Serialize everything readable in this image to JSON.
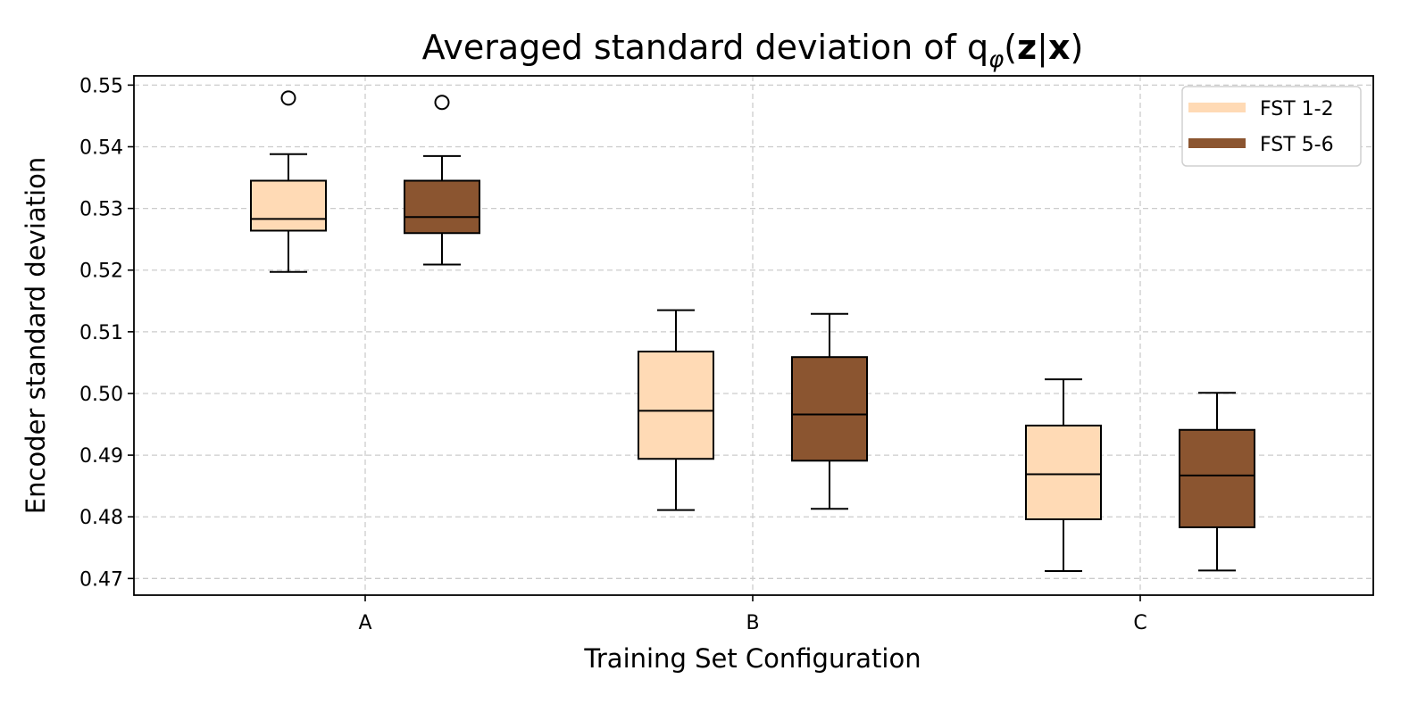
{
  "chart_data": {
    "type": "boxplot",
    "title_prefix": "Averaged standard deviation of q",
    "title_subscript": "φ",
    "title_open": "(",
    "title_z": "z",
    "title_bar": "|",
    "title_x": "x",
    "title_close": ")",
    "xlabel": "Training Set Configuration",
    "ylabel": "Encoder standard deviation",
    "categories": [
      "A",
      "B",
      "C"
    ],
    "ylim": [
      0.4673,
      0.5515
    ],
    "yticks": [
      0.47,
      0.48,
      0.49,
      0.5,
      0.51,
      0.52,
      0.53,
      0.54,
      0.55
    ],
    "ytick_labels": [
      "0.47",
      "0.48",
      "0.49",
      "0.50",
      "0.51",
      "0.52",
      "0.53",
      "0.54",
      "0.55"
    ],
    "grid": true,
    "legend_position": "top-right",
    "series": [
      {
        "name": "FST 1-2",
        "color": "#FFDAB5",
        "boxes": [
          {
            "category": "A",
            "whisker_low": 0.5197,
            "q1": 0.5264,
            "median": 0.5283,
            "q3": 0.5345,
            "whisker_high": 0.5388,
            "outliers": [
              0.5479
            ]
          },
          {
            "category": "B",
            "whisker_low": 0.4811,
            "q1": 0.4894,
            "median": 0.4972,
            "q3": 0.5068,
            "whisker_high": 0.5135,
            "outliers": []
          },
          {
            "category": "C",
            "whisker_low": 0.4712,
            "q1": 0.4796,
            "median": 0.4869,
            "q3": 0.4948,
            "whisker_high": 0.5023,
            "outliers": []
          }
        ]
      },
      {
        "name": "FST 5-6",
        "color": "#8B5530",
        "boxes": [
          {
            "category": "A",
            "whisker_low": 0.5209,
            "q1": 0.526,
            "median": 0.5286,
            "q3": 0.5345,
            "whisker_high": 0.5385,
            "outliers": [
              0.5472
            ]
          },
          {
            "category": "B",
            "whisker_low": 0.4813,
            "q1": 0.4891,
            "median": 0.4966,
            "q3": 0.5059,
            "whisker_high": 0.5129,
            "outliers": []
          },
          {
            "category": "C",
            "whisker_low": 0.4713,
            "q1": 0.4783,
            "median": 0.4867,
            "q3": 0.4941,
            "whisker_high": 0.5001,
            "outliers": []
          }
        ]
      }
    ]
  }
}
